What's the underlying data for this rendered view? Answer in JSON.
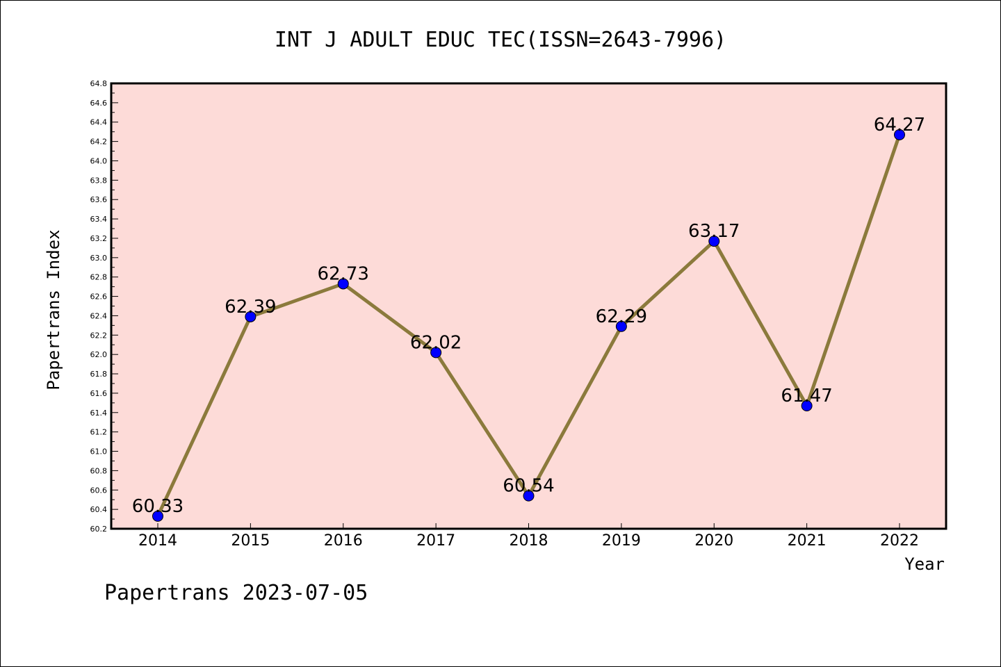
{
  "chart_data": {
    "type": "line",
    "title": "INT J ADULT EDUC TEC(ISSN=2643-7996)",
    "xlabel": "Year",
    "ylabel": "Papertrans Index",
    "categories": [
      "2014",
      "2015",
      "2016",
      "2017",
      "2018",
      "2019",
      "2020",
      "2021",
      "2022"
    ],
    "values": [
      60.33,
      62.39,
      62.73,
      62.02,
      60.54,
      62.29,
      63.17,
      61.47,
      64.27
    ],
    "data_labels": [
      "60.33",
      "62.39",
      "62.73",
      "62.02",
      "60.54",
      "62.29",
      "63.17",
      "61.47",
      "64.27"
    ],
    "yticks": [
      "60.2",
      "60.4",
      "60.6",
      "60.8",
      "61.0",
      "61.2",
      "61.4",
      "61.6",
      "61.8",
      "62.0",
      "62.2",
      "62.4",
      "62.6",
      "62.8",
      "63.0",
      "63.2",
      "63.4",
      "63.6",
      "63.8",
      "64.0",
      "64.2",
      "64.4",
      "64.6",
      "64.8"
    ],
    "ylim": [
      60.2,
      64.8
    ],
    "grid": false,
    "colors": {
      "plot_background": "#fddbd8",
      "line": "#8b7a3c",
      "marker": "#0000ff"
    }
  },
  "footer": "Papertrans 2023-07-05"
}
